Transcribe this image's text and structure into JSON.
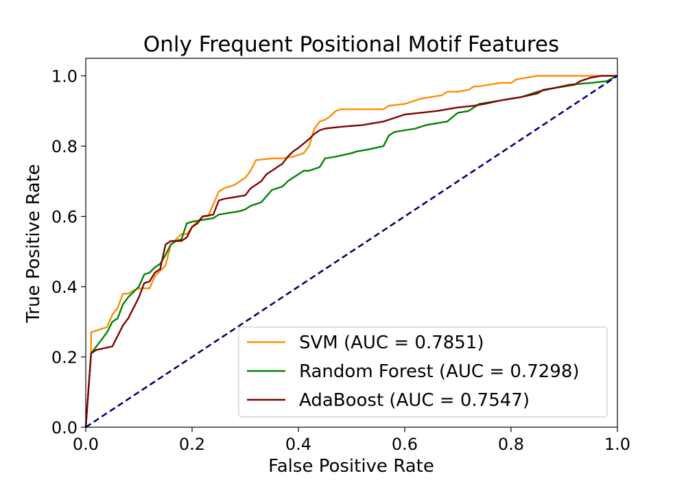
{
  "chart_data": {
    "type": "line",
    "title": "Only Frequent Positional Motif Features",
    "xlabel": "False Positive Rate",
    "ylabel": "True Positive Rate",
    "xlim": [
      0.0,
      1.0
    ],
    "ylim": [
      0.0,
      1.05
    ],
    "x_ticks": [
      "0.0",
      "0.2",
      "0.4",
      "0.6",
      "0.8",
      "1.0"
    ],
    "y_ticks": [
      "0.0",
      "0.2",
      "0.4",
      "0.6",
      "0.8",
      "1.0"
    ],
    "grid": false,
    "legend_placement": "lower-right",
    "series": [
      {
        "name": "SVM (AUC = 0.7851)",
        "color": "#ff8c00",
        "x": [
          0.0,
          0.01,
          0.01,
          0.04,
          0.05,
          0.06,
          0.07,
          0.08,
          0.09,
          0.1,
          0.12,
          0.13,
          0.15,
          0.16,
          0.17,
          0.18,
          0.19,
          0.2,
          0.21,
          0.22,
          0.23,
          0.25,
          0.26,
          0.28,
          0.3,
          0.31,
          0.32,
          0.35,
          0.37,
          0.39,
          0.4,
          0.41,
          0.42,
          0.43,
          0.44,
          0.45,
          0.46,
          0.47,
          0.48,
          0.5,
          0.53,
          0.56,
          0.57,
          0.6,
          0.62,
          0.63,
          0.65,
          0.67,
          0.68,
          0.7,
          0.72,
          0.73,
          0.74,
          0.76,
          0.78,
          0.8,
          0.81,
          0.83,
          0.85,
          0.86,
          0.9,
          0.95,
          1.0
        ],
        "y": [
          0.0,
          0.21,
          0.27,
          0.285,
          0.32,
          0.34,
          0.38,
          0.38,
          0.39,
          0.395,
          0.395,
          0.43,
          0.46,
          0.52,
          0.535,
          0.55,
          0.55,
          0.57,
          0.585,
          0.6,
          0.6,
          0.67,
          0.68,
          0.69,
          0.71,
          0.73,
          0.76,
          0.765,
          0.765,
          0.77,
          0.775,
          0.78,
          0.8,
          0.85,
          0.87,
          0.875,
          0.885,
          0.9,
          0.905,
          0.905,
          0.905,
          0.905,
          0.915,
          0.92,
          0.93,
          0.935,
          0.94,
          0.945,
          0.955,
          0.955,
          0.96,
          0.97,
          0.97,
          0.975,
          0.98,
          0.98,
          0.99,
          0.995,
          1.0,
          1.0,
          1.0,
          1.0,
          1.0
        ]
      },
      {
        "name": "Random Forest (AUC = 0.7298)",
        "color": "#008000",
        "x": [
          0.0,
          0.01,
          0.02,
          0.04,
          0.05,
          0.06,
          0.07,
          0.08,
          0.09,
          0.1,
          0.11,
          0.12,
          0.13,
          0.14,
          0.15,
          0.16,
          0.17,
          0.18,
          0.19,
          0.2,
          0.22,
          0.24,
          0.25,
          0.27,
          0.29,
          0.3,
          0.31,
          0.33,
          0.35,
          0.37,
          0.38,
          0.4,
          0.41,
          0.42,
          0.43,
          0.44,
          0.45,
          0.47,
          0.5,
          0.51,
          0.53,
          0.56,
          0.57,
          0.58,
          0.6,
          0.62,
          0.64,
          0.66,
          0.68,
          0.7,
          0.72,
          0.74,
          0.76,
          0.78,
          0.8,
          0.82,
          0.85,
          0.88,
          0.91,
          0.95,
          0.98,
          1.0
        ],
        "y": [
          0.0,
          0.21,
          0.23,
          0.27,
          0.3,
          0.31,
          0.35,
          0.37,
          0.385,
          0.4,
          0.435,
          0.44,
          0.455,
          0.465,
          0.49,
          0.52,
          0.53,
          0.535,
          0.58,
          0.585,
          0.59,
          0.595,
          0.605,
          0.61,
          0.615,
          0.62,
          0.63,
          0.64,
          0.675,
          0.685,
          0.7,
          0.72,
          0.73,
          0.73,
          0.735,
          0.74,
          0.765,
          0.77,
          0.78,
          0.785,
          0.79,
          0.8,
          0.83,
          0.84,
          0.845,
          0.85,
          0.86,
          0.865,
          0.87,
          0.895,
          0.9,
          0.92,
          0.925,
          0.93,
          0.935,
          0.94,
          0.955,
          0.965,
          0.975,
          0.98,
          0.985,
          1.0
        ]
      },
      {
        "name": "AdaBoost (AUC = 0.7547)",
        "color": "#800000",
        "x": [
          0.0,
          0.01,
          0.02,
          0.05,
          0.07,
          0.08,
          0.09,
          0.1,
          0.11,
          0.12,
          0.13,
          0.14,
          0.15,
          0.16,
          0.18,
          0.19,
          0.2,
          0.21,
          0.22,
          0.24,
          0.25,
          0.26,
          0.28,
          0.3,
          0.31,
          0.32,
          0.33,
          0.34,
          0.35,
          0.36,
          0.37,
          0.38,
          0.39,
          0.4,
          0.42,
          0.43,
          0.44,
          0.45,
          0.48,
          0.52,
          0.56,
          0.58,
          0.6,
          0.63,
          0.66,
          0.68,
          0.7,
          0.73,
          0.75,
          0.78,
          0.8,
          0.82,
          0.85,
          0.86,
          0.88,
          0.9,
          0.92,
          0.93,
          0.95,
          0.97,
          1.0
        ],
        "y": [
          0.0,
          0.21,
          0.22,
          0.23,
          0.29,
          0.31,
          0.34,
          0.37,
          0.41,
          0.415,
          0.44,
          0.45,
          0.52,
          0.53,
          0.53,
          0.54,
          0.57,
          0.58,
          0.6,
          0.605,
          0.645,
          0.65,
          0.655,
          0.66,
          0.68,
          0.69,
          0.7,
          0.72,
          0.73,
          0.74,
          0.75,
          0.77,
          0.785,
          0.795,
          0.82,
          0.835,
          0.845,
          0.85,
          0.855,
          0.86,
          0.87,
          0.88,
          0.89,
          0.895,
          0.9,
          0.905,
          0.91,
          0.915,
          0.92,
          0.93,
          0.935,
          0.94,
          0.95,
          0.96,
          0.965,
          0.97,
          0.975,
          0.985,
          0.995,
          1.0,
          1.0
        ]
      },
      {
        "name": "",
        "color": "#000080",
        "line_style": "dashed",
        "x": [
          0.0,
          1.0
        ],
        "y": [
          0.0,
          1.0
        ]
      }
    ]
  }
}
